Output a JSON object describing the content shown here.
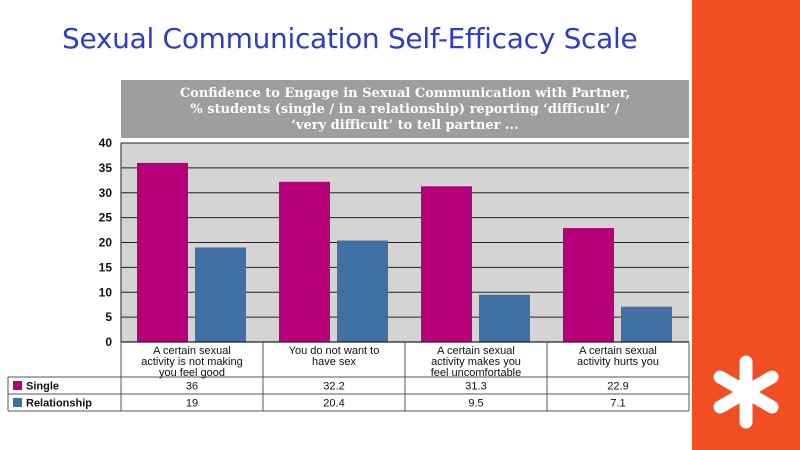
{
  "slide": {
    "title": "Sexual Communication Self-Efficacy Scale",
    "accent_color": "#f04e23",
    "logo_icon": "asterisk-icon"
  },
  "chart_data": {
    "type": "bar",
    "title_lines": [
      "Confidence to Engage in Sexual Communication with Partner,",
      "% students (single / in a relationship) reporting ‘difficult’ /",
      "‘very difficult’ to tell partner ..."
    ],
    "categories": [
      [
        "A certain sexual",
        "activity is not making",
        "you feel good"
      ],
      [
        "You do not want to",
        "have sex"
      ],
      [
        "A certain sexual",
        "activity makes you",
        "feel uncomfortable"
      ],
      [
        "A certain sexual",
        "activity hurts you"
      ]
    ],
    "series": [
      {
        "name": "Single",
        "color": "#b5007a",
        "values": [
          36,
          32.2,
          31.3,
          22.9
        ],
        "labels": [
          "36",
          "32.2",
          "31.3",
          "22.9"
        ]
      },
      {
        "name": "Relationship",
        "color": "#3f6fa3",
        "values": [
          19,
          20.4,
          9.5,
          7.1
        ],
        "labels": [
          "19",
          "20.4",
          "9.5",
          "7.1"
        ]
      }
    ],
    "ylim": [
      0,
      40
    ],
    "yticks": [
      0,
      5,
      10,
      15,
      20,
      25,
      30,
      35,
      40
    ],
    "grid": true,
    "legend": "data-table",
    "plot_background": "#d4d4d4"
  }
}
